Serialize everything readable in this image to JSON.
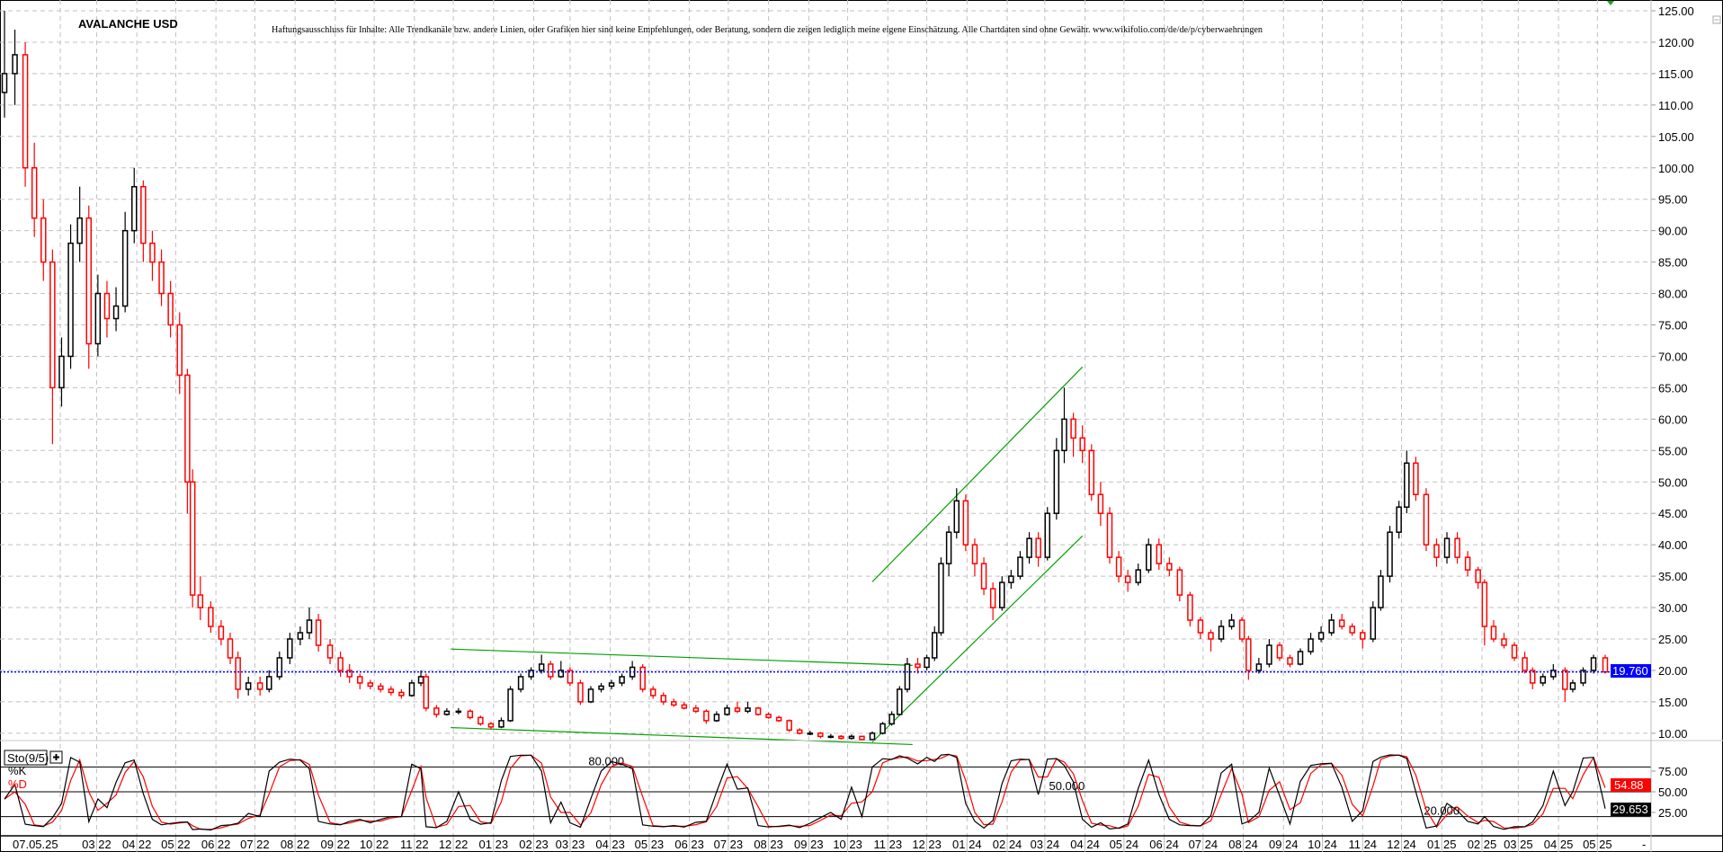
{
  "chart_data": {
    "type": "candlestick",
    "title": "AVALANCHE USD",
    "disclaimer": "Haftungsausschluss für Inhalte: Alle Trendkanäle bzw. andere Linien, oder Grafiken hier sind keine Empfehlungen, oder Beratung, sondern die zeigen lediglich meine eigene Einschätzung. Alle Chartdaten sind ohne Gewähr.  www.wikifolio.com/de/de/p/cyberwaehrungen",
    "date_label": "07.05.25",
    "x_tick_labels": [
      "03.22",
      "04.22",
      "05.22",
      "06.22",
      "07.22",
      "08.22",
      "09.22",
      "10.22",
      "11.22",
      "12.22",
      "01.23",
      "02.23",
      "03.23",
      "04.23",
      "05.23",
      "06.23",
      "07.23",
      "08.23",
      "09.23",
      "10.23",
      "11.23",
      "12.23",
      "01.24",
      "02.24",
      "03.24",
      "04.24",
      "05.24",
      "06.24",
      "07.24",
      "08.24",
      "09.24",
      "10.24",
      "11.24",
      "12.24",
      "01.25",
      "02.25",
      "03.25",
      "04.25",
      "05.25"
    ],
    "x_range": [
      "2021-12-20",
      "2025-05-07"
    ],
    "y_range": [
      10,
      125
    ],
    "y_ticks": [
      10,
      15,
      20,
      25,
      30,
      35,
      40,
      45,
      50,
      55,
      60,
      65,
      70,
      75,
      80,
      85,
      90,
      95,
      100,
      105,
      110,
      115,
      120,
      125
    ],
    "grid": true,
    "current_price": 19.76,
    "current_price_label": "19.760",
    "colors": {
      "up": "#000000",
      "down": "#ff0000",
      "trendline": "#00a000",
      "price_line": "#0000ff",
      "grid": "#c0c0c0"
    },
    "candles_fields": [
      "date",
      "open",
      "high",
      "low",
      "close"
    ],
    "candles": [
      [
        "2021-12-20",
        112,
        125,
        108,
        115
      ],
      [
        "2021-12-28",
        115,
        122,
        110,
        118
      ],
      [
        "2022-01-05",
        118,
        120,
        97,
        100
      ],
      [
        "2022-01-12",
        100,
        104,
        89,
        92
      ],
      [
        "2022-01-19",
        92,
        95,
        82,
        85
      ],
      [
        "2022-01-26",
        85,
        87,
        56,
        65
      ],
      [
        "2022-02-02",
        65,
        73,
        62,
        70
      ],
      [
        "2022-02-09",
        70,
        91,
        68,
        88
      ],
      [
        "2022-02-16",
        88,
        97,
        85,
        92
      ],
      [
        "2022-02-23",
        92,
        94,
        68,
        72
      ],
      [
        "2022-03-02",
        72,
        83,
        70,
        80
      ],
      [
        "2022-03-09",
        80,
        82,
        73,
        76
      ],
      [
        "2022-03-16",
        76,
        81,
        74,
        78
      ],
      [
        "2022-03-23",
        78,
        93,
        77,
        90
      ],
      [
        "2022-03-30",
        90,
        100,
        88,
        97
      ],
      [
        "2022-04-06",
        97,
        98,
        85,
        88
      ],
      [
        "2022-04-13",
        88,
        90,
        82,
        85
      ],
      [
        "2022-04-20",
        85,
        87,
        78,
        80
      ],
      [
        "2022-04-27",
        80,
        82,
        73,
        75
      ],
      [
        "2022-05-04",
        75,
        77,
        64,
        67
      ],
      [
        "2022-05-10",
        67,
        68,
        45,
        50
      ],
      [
        "2022-05-14",
        50,
        52,
        30,
        32
      ],
      [
        "2022-05-20",
        32,
        35,
        28,
        30
      ],
      [
        "2022-05-28",
        30,
        31,
        26,
        27
      ],
      [
        "2022-06-05",
        27,
        28,
        24,
        25
      ],
      [
        "2022-06-12",
        25,
        26,
        21,
        22
      ],
      [
        "2022-06-18",
        22,
        23,
        15.5,
        17
      ],
      [
        "2022-06-26",
        17,
        19,
        16,
        18
      ],
      [
        "2022-07-05",
        18,
        19,
        16,
        17
      ],
      [
        "2022-07-12",
        17,
        20,
        16.5,
        19
      ],
      [
        "2022-07-20",
        19,
        23,
        18.5,
        22
      ],
      [
        "2022-07-28",
        22,
        26,
        21,
        25
      ],
      [
        "2022-08-05",
        25,
        27,
        24,
        26
      ],
      [
        "2022-08-12",
        26,
        30,
        25,
        28
      ],
      [
        "2022-08-19",
        28,
        29,
        23,
        24
      ],
      [
        "2022-08-28",
        24,
        25,
        21,
        22
      ],
      [
        "2022-09-05",
        22,
        23,
        19,
        20
      ],
      [
        "2022-09-12",
        20,
        21,
        18,
        19
      ],
      [
        "2022-09-20",
        19,
        19.5,
        17,
        18
      ],
      [
        "2022-09-28",
        18,
        18.5,
        17,
        17.5
      ],
      [
        "2022-10-06",
        17.5,
        18,
        16.5,
        17
      ],
      [
        "2022-10-14",
        17,
        17.5,
        16,
        16.5
      ],
      [
        "2022-10-22",
        16.5,
        17,
        15.5,
        16
      ],
      [
        "2022-10-30",
        16,
        18.5,
        15.8,
        18
      ],
      [
        "2022-11-06",
        18,
        20,
        17.5,
        19
      ],
      [
        "2022-11-10",
        19,
        19.5,
        13.5,
        14
      ],
      [
        "2022-11-18",
        14,
        14.5,
        12.5,
        13
      ],
      [
        "2022-11-26",
        13,
        14,
        12.8,
        13.5
      ],
      [
        "2022-12-05",
        13.5,
        14,
        13,
        13.5
      ],
      [
        "2022-12-14",
        13.5,
        13.8,
        12.2,
        12.5
      ],
      [
        "2022-12-22",
        12.5,
        12.8,
        11.2,
        11.5
      ],
      [
        "2022-12-30",
        11.5,
        11.8,
        10.6,
        11
      ],
      [
        "2023-01-07",
        11,
        12.5,
        10.8,
        12
      ],
      [
        "2023-01-14",
        12,
        17.5,
        11.8,
        17
      ],
      [
        "2023-01-22",
        17,
        19.5,
        16.5,
        19
      ],
      [
        "2023-01-30",
        19,
        20.5,
        18.5,
        20
      ],
      [
        "2023-02-07",
        20,
        22.5,
        19.5,
        21
      ],
      [
        "2023-02-14",
        21,
        21.5,
        18.5,
        19
      ],
      [
        "2023-02-22",
        19,
        21.5,
        18.8,
        20
      ],
      [
        "2023-03-01",
        20,
        20.5,
        17.5,
        18
      ],
      [
        "2023-03-09",
        18,
        18.5,
        14.5,
        15
      ],
      [
        "2023-03-17",
        15,
        17.5,
        14.8,
        17
      ],
      [
        "2023-03-25",
        17,
        18,
        16.5,
        17.5
      ],
      [
        "2023-04-02",
        17.5,
        18.5,
        17,
        18
      ],
      [
        "2023-04-10",
        18,
        19.5,
        17.5,
        19
      ],
      [
        "2023-04-18",
        19,
        21.5,
        18.5,
        20.5
      ],
      [
        "2023-04-26",
        20.5,
        21,
        16.5,
        17
      ],
      [
        "2023-05-04",
        17,
        17.5,
        15.5,
        16
      ],
      [
        "2023-05-12",
        16,
        16.5,
        14.5,
        15
      ],
      [
        "2023-05-20",
        15,
        15.5,
        14.2,
        14.5
      ],
      [
        "2023-05-28",
        14.5,
        15,
        13.8,
        14
      ],
      [
        "2023-06-06",
        14,
        14.5,
        13.2,
        13.5
      ],
      [
        "2023-06-14",
        13.5,
        13.8,
        11.5,
        12
      ],
      [
        "2023-06-22",
        12,
        13.5,
        11.8,
        13
      ],
      [
        "2023-06-30",
        13,
        14.5,
        12.8,
        14
      ],
      [
        "2023-07-08",
        14,
        15,
        13.2,
        13.5
      ],
      [
        "2023-07-16",
        13.5,
        15,
        13.2,
        14
      ],
      [
        "2023-07-24",
        14,
        14.2,
        12.8,
        13
      ],
      [
        "2023-08-01",
        13,
        13.3,
        12.3,
        12.5
      ],
      [
        "2023-08-09",
        12.5,
        12.8,
        11.8,
        12
      ],
      [
        "2023-08-17",
        12,
        12.2,
        10.2,
        10.5
      ],
      [
        "2023-08-25",
        10.5,
        10.8,
        9.8,
        10
      ],
      [
        "2023-09-02",
        10,
        10.4,
        9.7,
        10
      ],
      [
        "2023-09-10",
        10,
        10.2,
        9.2,
        9.5
      ],
      [
        "2023-09-18",
        9.5,
        9.9,
        9.2,
        9.5
      ],
      [
        "2023-09-26",
        9.5,
        9.7,
        9,
        9.2
      ],
      [
        "2023-10-04",
        9.2,
        9.8,
        9,
        9.5
      ],
      [
        "2023-10-12",
        9.5,
        9.6,
        8.8,
        9
      ],
      [
        "2023-10-20",
        9,
        10.3,
        8.9,
        10
      ],
      [
        "2023-10-28",
        10,
        11.8,
        9.8,
        11.5
      ],
      [
        "2023-11-04",
        11.5,
        13.5,
        11.2,
        13
      ],
      [
        "2023-11-10",
        13,
        17.5,
        12.8,
        17
      ],
      [
        "2023-11-16",
        17,
        22,
        16.5,
        21
      ],
      [
        "2023-11-24",
        21,
        22,
        19.5,
        20.5
      ],
      [
        "2023-12-01",
        20.5,
        22.5,
        20,
        22
      ],
      [
        "2023-12-07",
        22,
        27,
        21.5,
        26
      ],
      [
        "2023-12-12",
        26,
        38,
        25.5,
        37
      ],
      [
        "2023-12-18",
        37,
        43,
        35,
        42
      ],
      [
        "2023-12-24",
        42,
        49,
        41,
        47
      ],
      [
        "2023-12-31",
        47,
        48,
        39,
        40
      ],
      [
        "2024-01-07",
        40,
        41,
        35,
        37
      ],
      [
        "2024-01-14",
        37,
        38,
        32,
        33
      ],
      [
        "2024-01-21",
        33,
        34,
        28,
        30
      ],
      [
        "2024-01-28",
        30,
        35,
        29.5,
        34
      ],
      [
        "2024-02-04",
        34,
        36,
        33,
        35
      ],
      [
        "2024-02-11",
        35,
        39,
        34.5,
        38
      ],
      [
        "2024-02-18",
        38,
        42,
        37,
        41
      ],
      [
        "2024-02-25",
        41,
        42,
        36.5,
        38
      ],
      [
        "2024-03-03",
        38,
        46,
        37.5,
        45
      ],
      [
        "2024-03-10",
        45,
        57,
        44,
        55
      ],
      [
        "2024-03-16",
        55,
        65,
        53,
        60
      ],
      [
        "2024-03-23",
        60,
        61,
        54,
        57
      ],
      [
        "2024-03-30",
        57,
        59,
        53,
        55
      ],
      [
        "2024-04-06",
        55,
        56,
        47,
        48
      ],
      [
        "2024-04-13",
        48,
        50,
        43,
        45
      ],
      [
        "2024-04-20",
        45,
        46,
        37,
        38
      ],
      [
        "2024-04-27",
        38,
        39,
        34,
        35
      ],
      [
        "2024-05-04",
        35,
        36,
        32.5,
        34
      ],
      [
        "2024-05-12",
        34,
        37,
        33.5,
        36
      ],
      [
        "2024-05-20",
        36,
        41,
        35.5,
        40
      ],
      [
        "2024-05-28",
        40,
        41,
        36,
        37
      ],
      [
        "2024-06-05",
        37,
        38,
        35,
        36
      ],
      [
        "2024-06-13",
        36,
        36.5,
        31,
        32
      ],
      [
        "2024-06-21",
        32,
        32.5,
        27,
        28
      ],
      [
        "2024-06-29",
        28,
        28.5,
        25,
        26
      ],
      [
        "2024-07-07",
        26,
        26.5,
        23,
        25
      ],
      [
        "2024-07-15",
        25,
        28,
        24.5,
        27
      ],
      [
        "2024-07-23",
        27,
        29,
        26.5,
        28
      ],
      [
        "2024-07-31",
        28,
        28.5,
        24.5,
        25
      ],
      [
        "2024-08-05",
        25,
        25.5,
        18.5,
        20
      ],
      [
        "2024-08-13",
        20,
        22,
        19.5,
        21
      ],
      [
        "2024-08-21",
        21,
        25,
        20.5,
        24
      ],
      [
        "2024-08-29",
        24,
        24.5,
        21.5,
        22
      ],
      [
        "2024-09-06",
        22,
        22.5,
        20.5,
        21
      ],
      [
        "2024-09-14",
        21,
        23.5,
        20.8,
        23
      ],
      [
        "2024-09-22",
        23,
        26,
        22.5,
        25
      ],
      [
        "2024-09-30",
        25,
        27,
        24.5,
        26
      ],
      [
        "2024-10-08",
        26,
        29,
        25.5,
        28
      ],
      [
        "2024-10-16",
        28,
        29,
        26.5,
        27
      ],
      [
        "2024-10-24",
        27,
        27.5,
        25.5,
        26
      ],
      [
        "2024-11-01",
        26,
        26.5,
        23.5,
        25
      ],
      [
        "2024-11-09",
        25,
        31,
        24.5,
        30
      ],
      [
        "2024-11-15",
        30,
        36,
        29.5,
        35
      ],
      [
        "2024-11-22",
        35,
        43,
        34,
        42
      ],
      [
        "2024-11-29",
        42,
        47,
        41,
        46
      ],
      [
        "2024-12-05",
        46,
        55,
        45,
        53
      ],
      [
        "2024-12-12",
        53,
        54,
        47,
        48
      ],
      [
        "2024-12-20",
        48,
        49,
        39,
        40
      ],
      [
        "2024-12-28",
        40,
        41,
        36.5,
        38
      ],
      [
        "2025-01-05",
        38,
        42,
        37,
        41
      ],
      [
        "2025-01-13",
        41,
        42,
        37,
        38
      ],
      [
        "2025-01-21",
        38,
        39,
        35,
        36
      ],
      [
        "2025-01-29",
        36,
        36.5,
        33,
        34
      ],
      [
        "2025-02-03",
        34,
        34.5,
        24,
        27
      ],
      [
        "2025-02-10",
        27,
        28,
        24.5,
        25
      ],
      [
        "2025-02-18",
        25,
        26,
        23.5,
        24
      ],
      [
        "2025-02-26",
        24,
        24.5,
        21.5,
        22
      ],
      [
        "2025-03-06",
        22,
        23,
        19.5,
        20
      ],
      [
        "2025-03-12",
        20,
        20.5,
        17,
        18
      ],
      [
        "2025-03-20",
        18,
        19.5,
        17.5,
        19
      ],
      [
        "2025-03-28",
        19,
        21,
        18.5,
        20
      ],
      [
        "2025-04-06",
        20,
        20.5,
        15,
        17
      ],
      [
        "2025-04-12",
        17,
        18.5,
        16.5,
        18
      ],
      [
        "2025-04-20",
        18,
        20.5,
        17.5,
        20
      ],
      [
        "2025-04-28",
        20,
        22.5,
        19.5,
        22
      ],
      [
        "2025-05-07",
        22,
        22.5,
        19.5,
        19.76
      ]
    ],
    "trendlines": [
      {
        "from": [
          "2022-11-29",
          23.4
        ],
        "to": [
          "2023-11-20",
          20.8
        ]
      },
      {
        "from": [
          "2022-11-29",
          10.9
        ],
        "to": [
          "2023-11-20",
          8.2
        ]
      },
      {
        "from": [
          "2023-10-20",
          34.1
        ],
        "to": [
          "2024-03-30",
          68.3
        ]
      },
      {
        "from": [
          "2023-10-20",
          8.6
        ],
        "to": [
          "2024-03-30",
          41.4
        ]
      }
    ],
    "indicator": {
      "name": "Sto(9/5)",
      "k_label": "%K",
      "d_label": "%D",
      "y_range": [
        0,
        100
      ],
      "y_ticks": [
        "75.00",
        "50.00",
        "25.00"
      ],
      "y_tick_values": [
        75,
        50,
        25
      ],
      "levels": [
        80,
        50,
        20
      ],
      "level_labels": [
        "80.000",
        "50.000",
        "20.000"
      ],
      "k_last": 29.653,
      "k_last_label": "29.653",
      "d_last": 54.88,
      "d_last_label": "54.88",
      "k_color": "#000000",
      "d_color": "#ff0000"
    },
    "x_axis_end_label": "-"
  }
}
